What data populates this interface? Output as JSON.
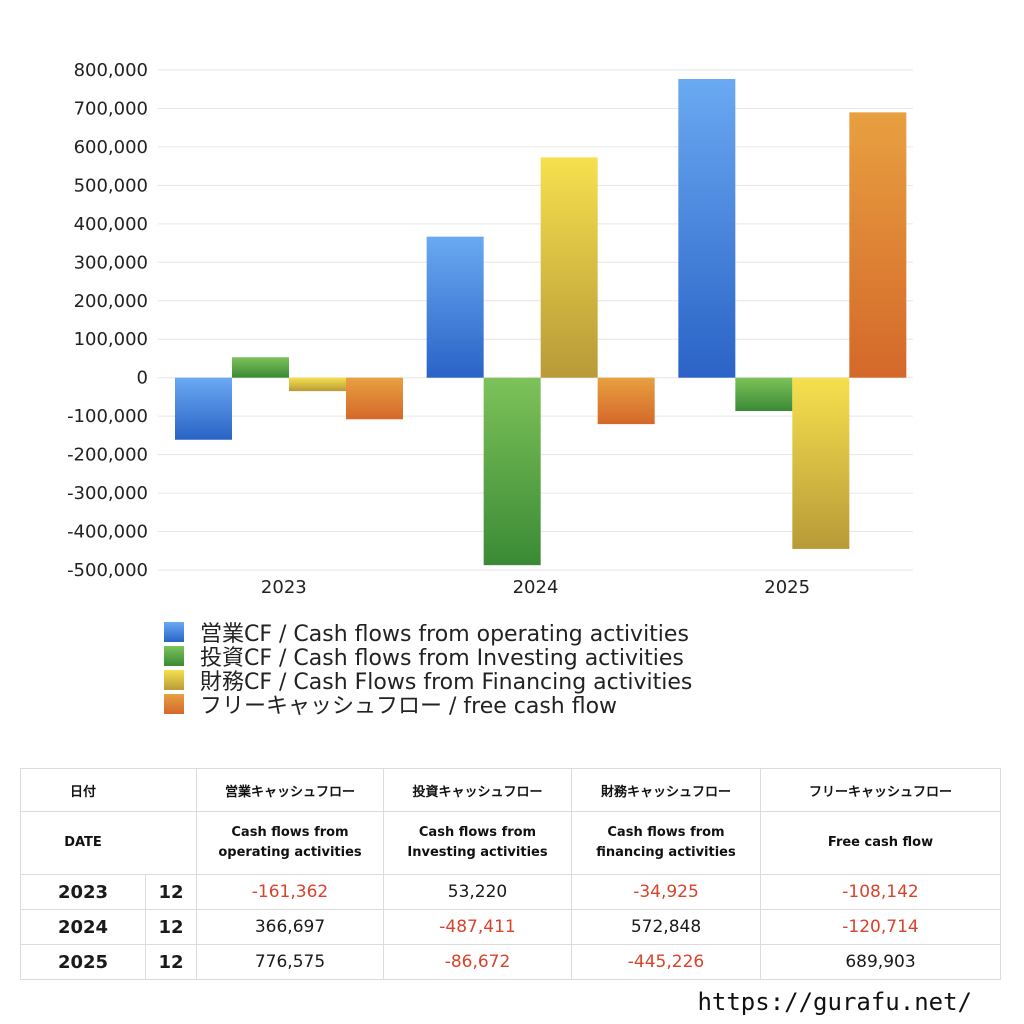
{
  "chart_data": {
    "type": "bar",
    "categories": [
      "2023",
      "2024",
      "2025"
    ],
    "series": [
      {
        "name": "営業CF / Cash flows from operating activities",
        "values": [
          -161362,
          366697,
          776575
        ],
        "color_top": "#6aa9f2",
        "color_bottom": "#2a63c6"
      },
      {
        "name": "投資CF / Cash flows from Investing activities",
        "values": [
          53220,
          -487411,
          -86672
        ],
        "color_top": "#7dc25a",
        "color_bottom": "#3a8a35"
      },
      {
        "name": "財務CF / Cash Flows from Financing activities",
        "values": [
          -34925,
          572848,
          -445226
        ],
        "color_top": "#f6e04e",
        "color_bottom": "#b89a38"
      },
      {
        "name": "フリーキャッシュフロー / free cash flow",
        "values": [
          -108142,
          -120714,
          689903
        ],
        "color_top": "#e8a040",
        "color_bottom": "#d4682a"
      }
    ],
    "ylim": [
      -500000,
      800000
    ],
    "yticks": [
      "800,000",
      "700,000",
      "600,000",
      "500,000",
      "400,000",
      "300,000",
      "200,000",
      "100,000",
      "0",
      "-100,000",
      "-200,000",
      "-300,000",
      "-400,000",
      "-500,000"
    ],
    "grid": true,
    "legend": "bottom"
  },
  "table": {
    "header_jp": {
      "date": "日付",
      "operating": "営業キャッシュフロー",
      "investing": "投資キャッシュフロー",
      "financing": "財務キャッシュフロー",
      "free": "フリーキャッシュフロー"
    },
    "header_en": {
      "date": "DATE",
      "operating": [
        "Cash flows from",
        "operating activities"
      ],
      "investing": [
        "Cash flows from",
        "Investing activities"
      ],
      "financing": [
        "Cash flows from",
        "financing activities"
      ],
      "free": "Free cash flow"
    },
    "rows": [
      {
        "year": "2023",
        "month": "12",
        "operating": "-161,362",
        "investing": "53,220",
        "financing": "-34,925",
        "free": "-108,142"
      },
      {
        "year": "2024",
        "month": "12",
        "operating": "366,697",
        "investing": "-487,411",
        "financing": "572,848",
        "free": "-120,714"
      },
      {
        "year": "2025",
        "month": "12",
        "operating": "776,575",
        "investing": "-86,672",
        "financing": "-445,226",
        "free": "689,903"
      }
    ]
  },
  "site_url": "https://gurafu.net/",
  "colors": {
    "negative_text": "#d9432b",
    "grid": "#e6e6e6"
  }
}
